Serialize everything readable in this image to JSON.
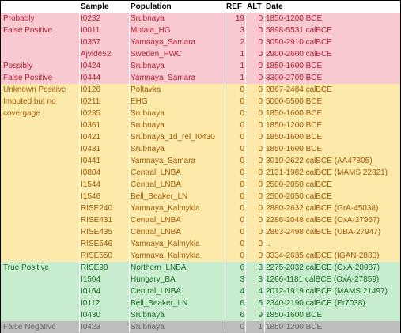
{
  "columns": {
    "group": "",
    "sample": "Sample",
    "population": "Population",
    "ref": "REF",
    "alt": "ALT",
    "date": "Date"
  },
  "groups": [
    {
      "label_lines": [
        "Probably",
        "False Positive"
      ],
      "bg": "#f8c9d0",
      "color": "#b01e32",
      "rows": [
        {
          "sample": "I0232",
          "population": "Srubnaya",
          "ref": "19",
          "alt": "0",
          "date": "1850-1200 BCE"
        },
        {
          "sample": "I0011",
          "population": "Motala_HG",
          "ref": "3",
          "alt": "0",
          "date": "5898-5531 calBCE"
        },
        {
          "sample": "I0357",
          "population": "Yamnaya_Samara",
          "ref": "2",
          "alt": "0",
          "date": "3090-2910 calBCE"
        },
        {
          "sample": "Ajvide52",
          "population": "Sweden_PWC",
          "ref": "1",
          "alt": "0",
          "date": "2900-2600 calBCE"
        }
      ]
    },
    {
      "label_lines": [
        "Possibly",
        "False Positive"
      ],
      "bg": "#f8c9d0",
      "color": "#b01e32",
      "rows": [
        {
          "sample": "I0424",
          "population": "Srubnaya",
          "ref": "1",
          "alt": "0",
          "date": "1850-1600 BCE"
        },
        {
          "sample": "I0444",
          "population": "Yamnaya_Samara",
          "ref": "1",
          "alt": "0",
          "date": "3300-2700 BCE"
        }
      ]
    },
    {
      "label_lines": [
        "Unknown Positive",
        "Imputed but no",
        "covergage"
      ],
      "bg": "#fde9a9",
      "color": "#9c5a06",
      "rows": [
        {
          "sample": "I0126",
          "population": "Poltavka",
          "ref": "0",
          "alt": "0",
          "date": "2867-2484 calBCE"
        },
        {
          "sample": "I0211",
          "population": "EHG",
          "ref": "0",
          "alt": "0",
          "date": "5000-5500 BCE"
        },
        {
          "sample": "I0235",
          "population": "Srubnaya",
          "ref": "0",
          "alt": "0",
          "date": "1850-1600 BCE"
        },
        {
          "sample": "I0361",
          "population": "Srubnaya",
          "ref": "0",
          "alt": "0",
          "date": "1850-1200 BCE"
        },
        {
          "sample": "I0421",
          "population": "Srubnaya_1d_rel_I0430",
          "ref": "0",
          "alt": "0",
          "date": "1850-1600 BCE"
        },
        {
          "sample": "I0431",
          "population": "Srubnaya",
          "ref": "0",
          "alt": "0",
          "date": "1850-1600 BCE"
        },
        {
          "sample": "I0441",
          "population": "Yamnaya_Samara",
          "ref": "0",
          "alt": "0",
          "date": "3010-2622 calBCE (AA47805)"
        },
        {
          "sample": "I0804",
          "population": "Central_LNBA",
          "ref": "0",
          "alt": "0",
          "date": "2131-1982 calBCE (MAMS 22821)"
        },
        {
          "sample": "I1544",
          "population": "Central_LNBA",
          "ref": "0",
          "alt": "0",
          "date": "2500-2050 calBCE"
        },
        {
          "sample": "I1546",
          "population": "Bell_Beaker_LN",
          "ref": "0",
          "alt": "0",
          "date": "2500-2050 calBCE"
        },
        {
          "sample": "RISE240",
          "population": "Yamnaya_Kalmykia",
          "ref": "0",
          "alt": "0",
          "date": "2880-2632 calBCE (GrA-45038)"
        },
        {
          "sample": "RISE431",
          "population": "Central_LNBA",
          "ref": "0",
          "alt": "0",
          "date": "2286-2048 calBCE (OxA-27967)"
        },
        {
          "sample": "RISE435",
          "population": "Central_LNBA",
          "ref": "0",
          "alt": "0",
          "date": "2863-2498 calBCE (UBA-27947)"
        },
        {
          "sample": "RISE546",
          "population": "Yamnaya_Kalmykia",
          "ref": "0",
          "alt": "0",
          "date": ".."
        },
        {
          "sample": "RISE550",
          "population": "Yamnaya_Kalmykia",
          "ref": "0",
          "alt": "0",
          "date": "3334-2635 calBCE (IGAN-2880)"
        }
      ]
    },
    {
      "label_lines": [
        "True Positive"
      ],
      "bg": "#c8ecce",
      "color": "#1e6e2e",
      "rows": [
        {
          "sample": "RISE98",
          "population": "Northern_LNBA",
          "ref": "6",
          "alt": "3",
          "date": "2275-2032 calBCE (OxA-28987)"
        },
        {
          "sample": "I1504",
          "population": "Hungary_BA",
          "ref": "3",
          "alt": "3",
          "date": "1266-1181 calBCE (OxA-27859)"
        },
        {
          "sample": "I0164",
          "population": "Central_LNBA",
          "ref": "4",
          "alt": "4",
          "date": "2012-1919 calBCE (MAMS 21497)"
        },
        {
          "sample": "I0112",
          "population": "Bell_Beaker_LN",
          "ref": "6",
          "alt": "5",
          "date": "2340-2190 calBCE (Er7038)"
        },
        {
          "sample": "I0430",
          "population": "Srubnaya",
          "ref": "6",
          "alt": "9",
          "date": "1850-1600 BCE"
        }
      ]
    },
    {
      "label_lines": [
        "False Negative"
      ],
      "bg": "#bdbdbd",
      "color": "#6a6a6a",
      "rows": [
        {
          "sample": "I0423",
          "population": "Srubnaya",
          "ref": "0",
          "alt": "1",
          "date": "1850-1200 BCE"
        }
      ]
    }
  ]
}
